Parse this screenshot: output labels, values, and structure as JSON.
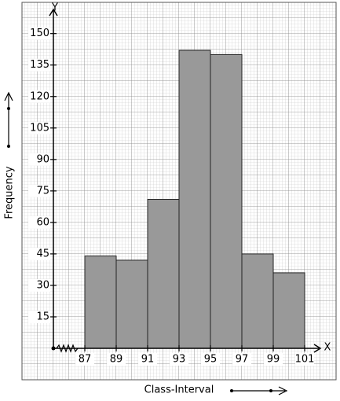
{
  "chart_data": {
    "type": "histogram",
    "xlabel": "Class-Interval",
    "ylabel": "Frequency",
    "x_axis_name": "X",
    "y_axis_name": "Y",
    "bins": [
      87,
      89,
      91,
      93,
      95,
      97,
      99,
      101
    ],
    "counts": [
      44,
      42,
      71,
      142,
      140,
      45,
      36
    ],
    "color": "#999999",
    "xlim": [
      85,
      102
    ],
    "ylim": [
      0,
      160
    ],
    "xticks": [
      87,
      89,
      91,
      93,
      95,
      97,
      99,
      101
    ],
    "yticks": [
      15,
      30,
      45,
      60,
      75,
      90,
      105,
      120,
      135,
      150
    ],
    "grid": true
  }
}
